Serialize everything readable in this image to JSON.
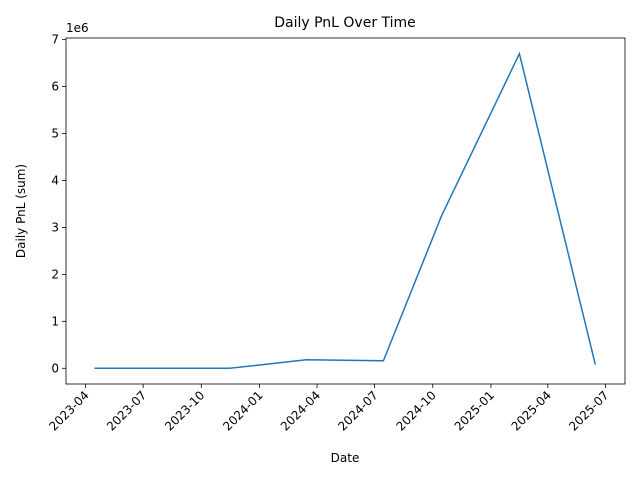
{
  "chart_data": {
    "type": "line",
    "title": "Daily PnL Over Time",
    "x_label": "Date",
    "y_label": "Daily PnL (sum)",
    "y_offset_label": "1e6",
    "x": [
      "2023-04",
      "2023-11",
      "2024-03",
      "2024-07",
      "2024-10",
      "2025-02",
      "2025-06"
    ],
    "series": [
      {
        "name": "Daily PnL",
        "color": "#1f77b4",
        "values": [
          0,
          0,
          180000,
          160000,
          3250000,
          6700000,
          80000
        ]
      }
    ],
    "xlim": [
      "2023-03",
      "2025-08"
    ],
    "xticks": [
      "2023-04",
      "2023-07",
      "2023-10",
      "2024-01",
      "2024-04",
      "2024-07",
      "2024-10",
      "2025-01",
      "2025-04",
      "2025-07"
    ],
    "ylim": [
      -335000,
      7035000
    ],
    "yticks": [
      {
        "value": 0,
        "label": "0"
      },
      {
        "value": 1000000,
        "label": "1"
      },
      {
        "value": 2000000,
        "label": "2"
      },
      {
        "value": 3000000,
        "label": "3"
      },
      {
        "value": 4000000,
        "label": "4"
      },
      {
        "value": 5000000,
        "label": "5"
      },
      {
        "value": 6000000,
        "label": "6"
      },
      {
        "value": 7000000,
        "label": "7"
      }
    ],
    "grid": false
  }
}
